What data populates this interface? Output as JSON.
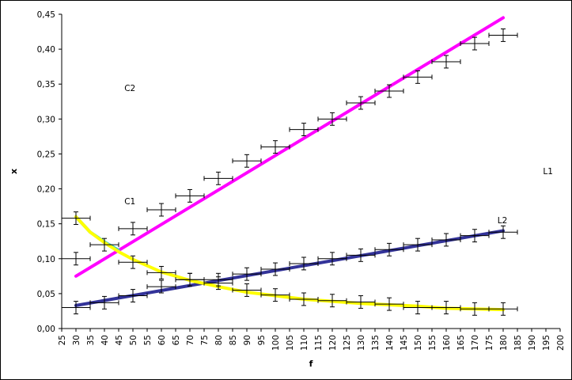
{
  "chart_data": {
    "type": "scatter",
    "title": "",
    "xlabel": "f",
    "ylabel": "x",
    "xlim": [
      25,
      200
    ],
    "ylim": [
      0,
      0.45
    ],
    "x_ticks": [
      "25",
      "30",
      "35",
      "40",
      "45",
      "50",
      "55",
      "60",
      "65",
      "70",
      "75",
      "80",
      "85",
      "90",
      "95",
      "100",
      "105",
      "110",
      "115",
      "120",
      "125",
      "130",
      "135",
      "140",
      "145",
      "150",
      "155",
      "160",
      "165",
      "170",
      "175",
      "180",
      "185",
      "190",
      "195",
      "200"
    ],
    "y_ticks": [
      "0,00",
      "0,05",
      "0,10",
      "0,15",
      "0,20",
      "0,25",
      "0,30",
      "0,35",
      "0,40",
      "0,45"
    ],
    "grid": false,
    "colors": {
      "points": "#000000",
      "c2_line": "#ff00ff",
      "l2_line": "#333399",
      "c1_line_start": "#33cccc",
      "c1_line": "#ffff00"
    },
    "series": [
      {
        "x": [
          30,
          50,
          60,
          70,
          80,
          90,
          100,
          110,
          120,
          130,
          140,
          150,
          160,
          170,
          180
        ],
        "y": [
          0.158,
          0.143,
          0.17,
          0.19,
          0.215,
          0.24,
          0.26,
          0.285,
          0.3,
          0.323,
          0.34,
          0.36,
          0.382,
          0.408,
          0.42
        ],
        "xerr": 5,
        "yerr": 0.009
      },
      {
        "x": [
          30,
          40,
          50,
          60,
          70,
          80,
          90,
          100,
          110,
          120,
          130,
          140,
          150,
          160,
          170,
          180
        ],
        "y": [
          0.1,
          0.12,
          0.095,
          0.08,
          0.07,
          0.065,
          0.055,
          0.048,
          0.042,
          0.04,
          0.038,
          0.035,
          0.03,
          0.03,
          0.028,
          0.028
        ],
        "xerr": 5,
        "yerr": 0.009
      },
      {
        "x": [
          30,
          40,
          50,
          60,
          70,
          80,
          90,
          100,
          110,
          120,
          130,
          140,
          150,
          160,
          170,
          180
        ],
        "y": [
          0.03,
          0.037,
          0.047,
          0.06,
          0.07,
          0.07,
          0.078,
          0.085,
          0.093,
          0.1,
          0.105,
          0.113,
          0.12,
          0.127,
          0.133,
          0.138
        ],
        "xerr": 5,
        "yerr": 0.009
      }
    ],
    "fit_lines": [
      {
        "color": "#ff00ff",
        "x": [
          30,
          180
        ],
        "y": [
          0.075,
          0.445
        ]
      },
      {
        "color": "#333399",
        "x": [
          30,
          180
        ],
        "y": [
          0.033,
          0.14
        ]
      },
      {
        "color": "#33cccc",
        "x": [
          30,
          35,
          40,
          45
        ],
        "y": [
          0.16,
          0.138,
          0.124,
          0.112
        ]
      },
      {
        "color": "#ffff00",
        "x": [
          30,
          35,
          40,
          45,
          50,
          60,
          70,
          80,
          90,
          100,
          110,
          120,
          130,
          140,
          150,
          160,
          170,
          180
        ],
        "y": [
          0.16,
          0.138,
          0.123,
          0.11,
          0.099,
          0.081,
          0.069,
          0.06,
          0.052,
          0.047,
          0.042,
          0.039,
          0.036,
          0.034,
          0.032,
          0.029,
          0.028,
          0.027
        ]
      }
    ],
    "annotations": [
      {
        "text": "C2",
        "x": 47,
        "y": 0.34
      },
      {
        "text": "C1",
        "x": 47,
        "y": 0.178
      },
      {
        "text": "L1",
        "x": 194,
        "y": 0.221
      },
      {
        "text": "L2",
        "x": 178,
        "y": 0.151
      }
    ]
  }
}
